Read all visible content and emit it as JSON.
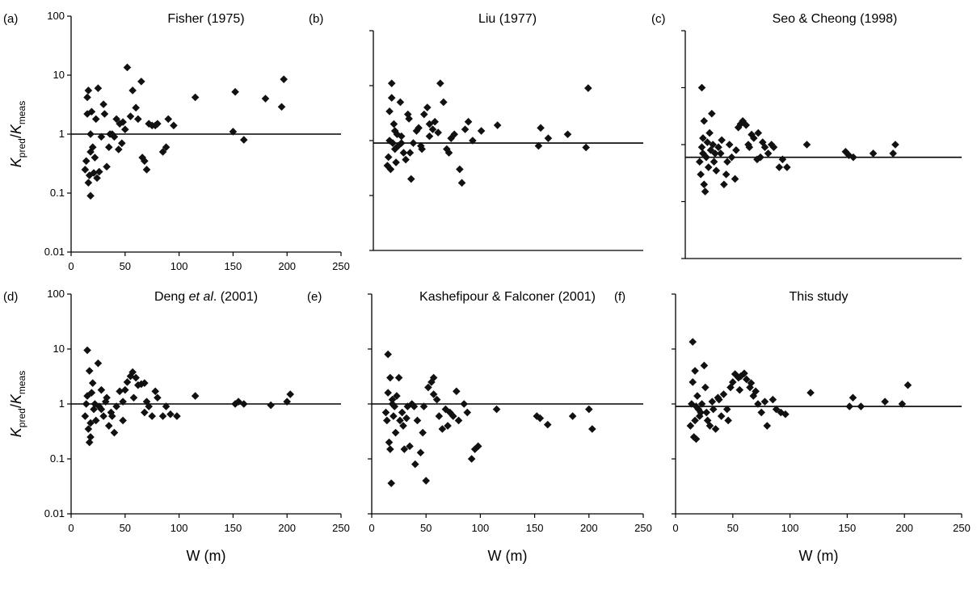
{
  "chart_data": [
    {
      "type": "scatter",
      "panel_label": "(a)",
      "title": "Fisher (1975)",
      "yscale": "log",
      "xlim": [
        0,
        250
      ],
      "ylim": [
        0.01,
        100
      ],
      "reference_line": 1,
      "xticks": [
        "0",
        "50",
        "100",
        "150",
        "200",
        "250"
      ],
      "yticks": [
        "0.01",
        "0.1",
        "1",
        "10",
        "100"
      ],
      "ylabel_main": "K",
      "ylabel_sub1": "pred",
      "ylabel_slash": "/",
      "ylabel_sub2": "meas",
      "x": [
        13,
        14,
        15,
        15,
        16,
        16,
        17,
        18,
        18,
        19,
        20,
        21,
        22,
        23,
        25,
        26,
        28,
        30,
        31,
        33,
        35,
        38,
        40,
        42,
        44,
        45,
        47,
        50,
        52,
        55,
        57,
        60,
        62,
        65,
        68,
        70,
        72,
        75,
        80,
        85,
        88,
        90,
        95,
        115,
        150,
        152,
        160,
        195,
        197,
        180,
        18,
        24,
        36,
        48,
        66,
        78
      ],
      "y": [
        0.25,
        0.35,
        2.2,
        4.2,
        0.15,
        5.5,
        0.2,
        1.0,
        0.09,
        2.4,
        0.6,
        0.22,
        0.4,
        1.8,
        6.0,
        0.23,
        0.9,
        3.2,
        2.2,
        0.28,
        0.6,
        1.0,
        0.9,
        1.8,
        0.55,
        1.5,
        0.7,
        1.2,
        13.5,
        2.0,
        5.5,
        2.8,
        1.8,
        7.8,
        0.35,
        0.25,
        1.5,
        1.4,
        1.5,
        0.5,
        0.6,
        1.8,
        1.4,
        4.2,
        1.1,
        5.2,
        0.8,
        2.9,
        8.5,
        4.0,
        0.5,
        0.18,
        1.0,
        1.6,
        0.4,
        1.4
      ]
    },
    {
      "type": "scatter",
      "panel_label": "(b)",
      "title": "Liu (1977)",
      "yscale": "log",
      "xlim": [
        0,
        250
      ],
      "ylim": [
        0.01,
        100
      ],
      "reference_line": 0.9,
      "xticks": [],
      "yticks": [],
      "x": [
        13,
        14,
        15,
        15,
        16,
        17,
        17,
        18,
        19,
        20,
        21,
        22,
        23,
        25,
        26,
        28,
        30,
        32,
        33,
        35,
        37,
        40,
        42,
        45,
        47,
        50,
        52,
        55,
        57,
        60,
        62,
        65,
        68,
        70,
        72,
        75,
        80,
        82,
        85,
        88,
        92,
        100,
        115,
        153,
        155,
        162,
        180,
        197,
        199,
        20,
        26,
        34,
        44,
        52
      ],
      "y": [
        0.35,
        0.5,
        1.0,
        3.4,
        0.3,
        11.0,
        6.0,
        0.9,
        2.0,
        0.7,
        0.4,
        1.3,
        0.8,
        5.0,
        1.2,
        0.6,
        0.45,
        3.0,
        2.5,
        0.2,
        0.9,
        1.5,
        1.7,
        0.7,
        3.0,
        4.0,
        1.2,
        1.6,
        2.2,
        1.4,
        11.0,
        5.0,
        0.7,
        0.6,
        1.1,
        1.3,
        0.3,
        0.17,
        1.6,
        2.2,
        1.0,
        1.5,
        1.9,
        0.8,
        1.7,
        1.1,
        1.3,
        0.75,
        9.0,
        1.5,
        0.9,
        0.6,
        0.8,
        2.0
      ]
    },
    {
      "type": "scatter",
      "panel_label": "(c)",
      "title": "Seo & Cheong (1998)",
      "yscale": "log",
      "xlim": [
        0,
        250
      ],
      "ylim": [
        0.01,
        100
      ],
      "reference_line": 0.6,
      "xticks": [],
      "yticks": [],
      "x": [
        13,
        14,
        15,
        15,
        16,
        17,
        17,
        18,
        19,
        20,
        21,
        22,
        23,
        24,
        25,
        26,
        28,
        30,
        32,
        33,
        35,
        37,
        40,
        42,
        45,
        48,
        50,
        52,
        55,
        57,
        60,
        62,
        65,
        68,
        70,
        72,
        75,
        78,
        80,
        85,
        88,
        92,
        110,
        145,
        148,
        152,
        170,
        188,
        190,
        16,
        27,
        38,
        46,
        58,
        66
      ],
      "y": [
        0.5,
        0.3,
        0.9,
        10.0,
        0.7,
        0.2,
        2.6,
        0.15,
        0.6,
        1.1,
        0.4,
        1.6,
        0.8,
        3.5,
        1.0,
        0.5,
        0.35,
        0.9,
        0.7,
        1.2,
        0.2,
        0.3,
        1.0,
        0.6,
        0.25,
        2.0,
        2.3,
        2.6,
        2.2,
        1.0,
        1.5,
        1.3,
        0.55,
        0.6,
        1.1,
        0.9,
        0.7,
        1.0,
        0.9,
        0.4,
        0.55,
        0.4,
        1.0,
        0.75,
        0.65,
        0.6,
        0.7,
        0.7,
        1.0,
        1.3,
        0.7,
        0.5,
        0.8,
        0.9,
        1.6
      ]
    },
    {
      "type": "scatter",
      "panel_label": "(d)",
      "title_parts": [
        "Deng ",
        "et al",
        ". (2001)"
      ],
      "yscale": "log",
      "xlim": [
        0,
        250
      ],
      "ylim": [
        0.01,
        100
      ],
      "reference_line": 1,
      "xticks": [
        "0",
        "50",
        "100",
        "150",
        "200",
        "250"
      ],
      "yticks": [
        "0.01",
        "0.1",
        "1",
        "10",
        "100"
      ],
      "xlabel": "W (m)",
      "ylabel_main": "K",
      "ylabel_sub1": "pred",
      "ylabel_slash": "/",
      "ylabel_sub2": "meas",
      "x": [
        13,
        14,
        15,
        15,
        16,
        17,
        17,
        18,
        19,
        20,
        21,
        22,
        23,
        25,
        26,
        28,
        30,
        32,
        33,
        35,
        37,
        40,
        42,
        45,
        48,
        50,
        52,
        55,
        57,
        60,
        62,
        65,
        68,
        70,
        72,
        75,
        78,
        80,
        85,
        88,
        92,
        98,
        115,
        152,
        155,
        160,
        185,
        200,
        203,
        18,
        28,
        38,
        48,
        58,
        68
      ],
      "y": [
        0.6,
        1.0,
        1.4,
        9.5,
        0.35,
        0.2,
        4.0,
        0.25,
        1.6,
        2.4,
        0.8,
        1.0,
        0.5,
        5.5,
        0.9,
        1.8,
        0.6,
        1.1,
        1.3,
        0.4,
        0.7,
        0.3,
        0.9,
        1.7,
        0.5,
        1.8,
        2.5,
        3.2,
        3.8,
        3.0,
        2.2,
        2.3,
        0.7,
        1.1,
        0.9,
        0.6,
        1.7,
        1.3,
        0.6,
        0.9,
        0.65,
        0.6,
        1.4,
        1.0,
        1.1,
        1.0,
        0.95,
        1.1,
        1.5,
        0.45,
        0.8,
        0.6,
        1.1,
        1.3,
        2.4
      ]
    },
    {
      "type": "scatter",
      "panel_label": "(e)",
      "title": "Kashefipour & Falconer (2001)",
      "yscale": "log",
      "xlim": [
        0,
        250
      ],
      "ylim": [
        0.01,
        100
      ],
      "reference_line": 1,
      "xticks": [
        "0",
        "50",
        "100",
        "150",
        "200",
        "250"
      ],
      "yticks": [],
      "xlabel": "W (m)",
      "x": [
        13,
        14,
        15,
        15,
        16,
        17,
        17,
        18,
        19,
        20,
        21,
        22,
        23,
        25,
        26,
        28,
        30,
        32,
        33,
        35,
        37,
        40,
        42,
        45,
        48,
        50,
        52,
        55,
        57,
        60,
        62,
        65,
        68,
        70,
        72,
        75,
        78,
        80,
        85,
        88,
        92,
        95,
        98,
        115,
        152,
        155,
        162,
        185,
        200,
        203,
        19,
        29,
        39,
        47,
        57
      ],
      "y": [
        0.7,
        0.5,
        1.6,
        8.0,
        0.2,
        0.15,
        3.0,
        0.036,
        1.0,
        0.6,
        0.9,
        0.3,
        1.4,
        3.0,
        0.5,
        0.7,
        0.15,
        0.55,
        0.9,
        0.17,
        1.0,
        0.08,
        0.5,
        0.13,
        0.9,
        0.04,
        2.0,
        2.5,
        3.0,
        1.2,
        0.6,
        0.35,
        0.8,
        0.4,
        0.7,
        0.6,
        1.7,
        0.5,
        1.0,
        0.7,
        0.1,
        0.15,
        0.17,
        0.8,
        0.6,
        0.55,
        0.42,
        0.6,
        0.8,
        0.35,
        1.2,
        0.4,
        0.9,
        0.3,
        1.5
      ]
    },
    {
      "type": "scatter",
      "panel_label": "(f)",
      "title": "This study",
      "yscale": "log",
      "xlim": [
        0,
        250
      ],
      "ylim": [
        0.01,
        100
      ],
      "reference_line": 0.9,
      "xticks": [
        "0",
        "50",
        "100",
        "150",
        "200",
        "250"
      ],
      "yticks": [],
      "xlabel": "W (m)",
      "x": [
        13,
        14,
        15,
        15,
        16,
        17,
        17,
        18,
        19,
        20,
        21,
        22,
        23,
        25,
        26,
        28,
        30,
        32,
        33,
        35,
        37,
        40,
        42,
        45,
        48,
        50,
        52,
        55,
        57,
        60,
        62,
        65,
        68,
        70,
        72,
        75,
        78,
        80,
        85,
        88,
        92,
        96,
        118,
        152,
        155,
        162,
        183,
        198,
        203,
        18,
        27,
        38,
        46,
        56,
        66
      ],
      "y": [
        0.4,
        1.0,
        2.5,
        13.5,
        0.25,
        0.5,
        4.0,
        0.23,
        1.4,
        0.8,
        0.6,
        0.7,
        1.0,
        5.0,
        2.0,
        0.5,
        0.4,
        1.1,
        0.8,
        0.35,
        1.3,
        0.6,
        1.5,
        0.8,
        2.0,
        2.5,
        3.5,
        3.0,
        3.2,
        3.6,
        2.8,
        2.0,
        1.4,
        1.7,
        1.0,
        0.7,
        1.1,
        0.4,
        1.2,
        0.8,
        0.7,
        0.65,
        1.6,
        0.9,
        1.3,
        0.9,
        1.1,
        1.0,
        2.2,
        0.9,
        0.7,
        1.2,
        0.5,
        1.8,
        2.4
      ]
    }
  ]
}
